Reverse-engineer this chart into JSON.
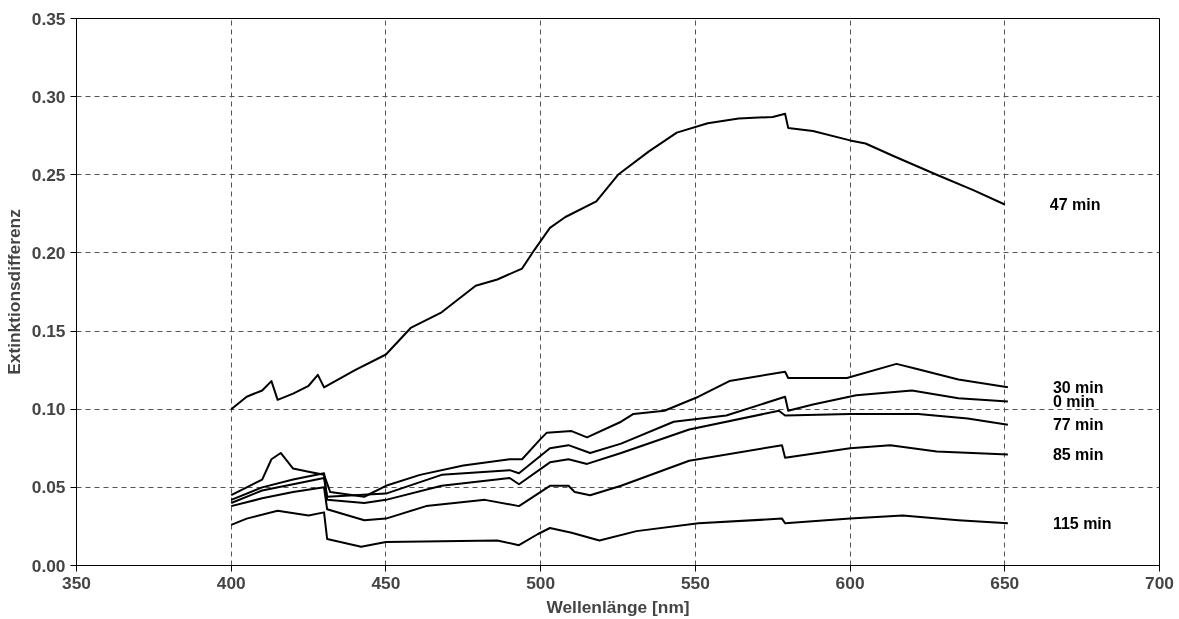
{
  "chart_data": {
    "type": "line",
    "xlabel": "Wellenlänge [nm]",
    "ylabel": "Extinktionsdifferenz",
    "xlim": [
      350,
      700
    ],
    "xticks": [
      350,
      400,
      450,
      500,
      550,
      600,
      650,
      700
    ],
    "ylim": [
      0,
      0.35
    ],
    "yticks": [
      {
        "value": 0,
        "label": "0.00"
      },
      {
        "value": 0.05,
        "label": "0.05"
      },
      {
        "value": 0.1,
        "label": "0.10"
      },
      {
        "value": 0.15,
        "label": "0.15"
      },
      {
        "value": 0.2,
        "label": "0.20"
      },
      {
        "value": 0.25,
        "label": "0.25"
      },
      {
        "value": 0.3,
        "label": "0.30"
      },
      {
        "value": 0.35,
        "label": "0.35"
      }
    ],
    "grid": true,
    "legend": false,
    "marker": "none",
    "line_style": "solid",
    "series": [
      {
        "name": "47 min",
        "color": "#000000",
        "x": [
          400,
          405,
          410,
          413,
          415,
          420,
          425,
          428,
          430,
          440,
          450,
          458,
          468,
          479,
          486,
          494,
          498,
          503,
          508,
          518,
          525,
          535,
          544,
          554,
          564,
          575,
          579,
          580,
          588,
          600,
          605,
          614,
          628,
          640,
          650
        ],
        "values": [
          0.1,
          0.108,
          0.112,
          0.118,
          0.106,
          0.11,
          0.115,
          0.122,
          0.114,
          0.125,
          0.135,
          0.152,
          0.162,
          0.179,
          0.183,
          0.19,
          0.202,
          0.216,
          0.223,
          0.233,
          0.25,
          0.265,
          0.277,
          0.283,
          0.286,
          0.287,
          0.289,
          0.28,
          0.278,
          0.272,
          0.27,
          0.262,
          0.25,
          0.24,
          0.231
        ]
      },
      {
        "name": "30 min",
        "color": "#000000",
        "x": [
          400,
          405,
          410,
          413,
          416,
          420,
          425,
          430,
          432,
          443,
          450,
          461,
          475,
          490,
          494,
          500,
          502,
          510,
          515,
          526,
          530,
          540,
          551,
          561,
          579,
          580,
          599,
          615,
          621,
          635,
          651
        ],
        "values": [
          0.045,
          0.05,
          0.055,
          0.068,
          0.072,
          0.062,
          0.06,
          0.058,
          0.047,
          0.044,
          0.051,
          0.058,
          0.064,
          0.068,
          0.068,
          0.081,
          0.085,
          0.086,
          0.082,
          0.092,
          0.097,
          0.099,
          0.108,
          0.118,
          0.124,
          0.12,
          0.12,
          0.129,
          0.126,
          0.119,
          0.114
        ]
      },
      {
        "name": "0 min",
        "color": "#000000",
        "x": [
          400,
          410,
          420,
          430,
          431,
          450,
          468,
          490,
          493,
          503,
          509,
          516,
          526,
          543,
          560,
          579,
          580,
          588,
          602,
          620,
          635,
          651
        ],
        "values": [
          0.04,
          0.048,
          0.052,
          0.056,
          0.044,
          0.046,
          0.058,
          0.061,
          0.059,
          0.075,
          0.077,
          0.072,
          0.078,
          0.092,
          0.096,
          0.108,
          0.099,
          0.103,
          0.109,
          0.112,
          0.107,
          0.105
        ]
      },
      {
        "name": "77 min",
        "color": "#000000",
        "x": [
          400,
          410,
          420,
          430,
          431,
          443,
          450,
          468,
          490,
          493,
          503,
          509,
          515,
          526,
          548,
          577,
          579,
          600,
          622,
          638,
          651
        ],
        "values": [
          0.042,
          0.05,
          0.055,
          0.059,
          0.042,
          0.04,
          0.042,
          0.051,
          0.056,
          0.052,
          0.066,
          0.068,
          0.065,
          0.072,
          0.087,
          0.099,
          0.096,
          0.097,
          0.097,
          0.094,
          0.09
        ]
      },
      {
        "name": "85 min",
        "color": "#000000",
        "x": [
          400,
          410,
          420,
          430,
          431,
          443,
          450,
          463,
          482,
          493,
          503,
          509,
          511,
          516,
          526,
          548,
          578,
          579,
          600,
          613,
          628,
          651
        ],
        "values": [
          0.038,
          0.043,
          0.047,
          0.05,
          0.036,
          0.029,
          0.03,
          0.038,
          0.042,
          0.038,
          0.051,
          0.051,
          0.047,
          0.045,
          0.051,
          0.067,
          0.077,
          0.069,
          0.075,
          0.077,
          0.073,
          0.071
        ]
      },
      {
        "name": "115 min",
        "color": "#000000",
        "x": [
          400,
          405,
          415,
          425,
          430,
          431,
          442,
          450,
          486,
          493,
          499,
          503,
          510,
          519,
          531,
          551,
          578,
          579,
          600,
          617,
          635,
          651
        ],
        "values": [
          0.026,
          0.03,
          0.035,
          0.032,
          0.034,
          0.017,
          0.012,
          0.015,
          0.016,
          0.013,
          0.02,
          0.024,
          0.021,
          0.016,
          0.022,
          0.027,
          0.03,
          0.027,
          0.03,
          0.032,
          0.029,
          0.027
        ]
      }
    ]
  }
}
